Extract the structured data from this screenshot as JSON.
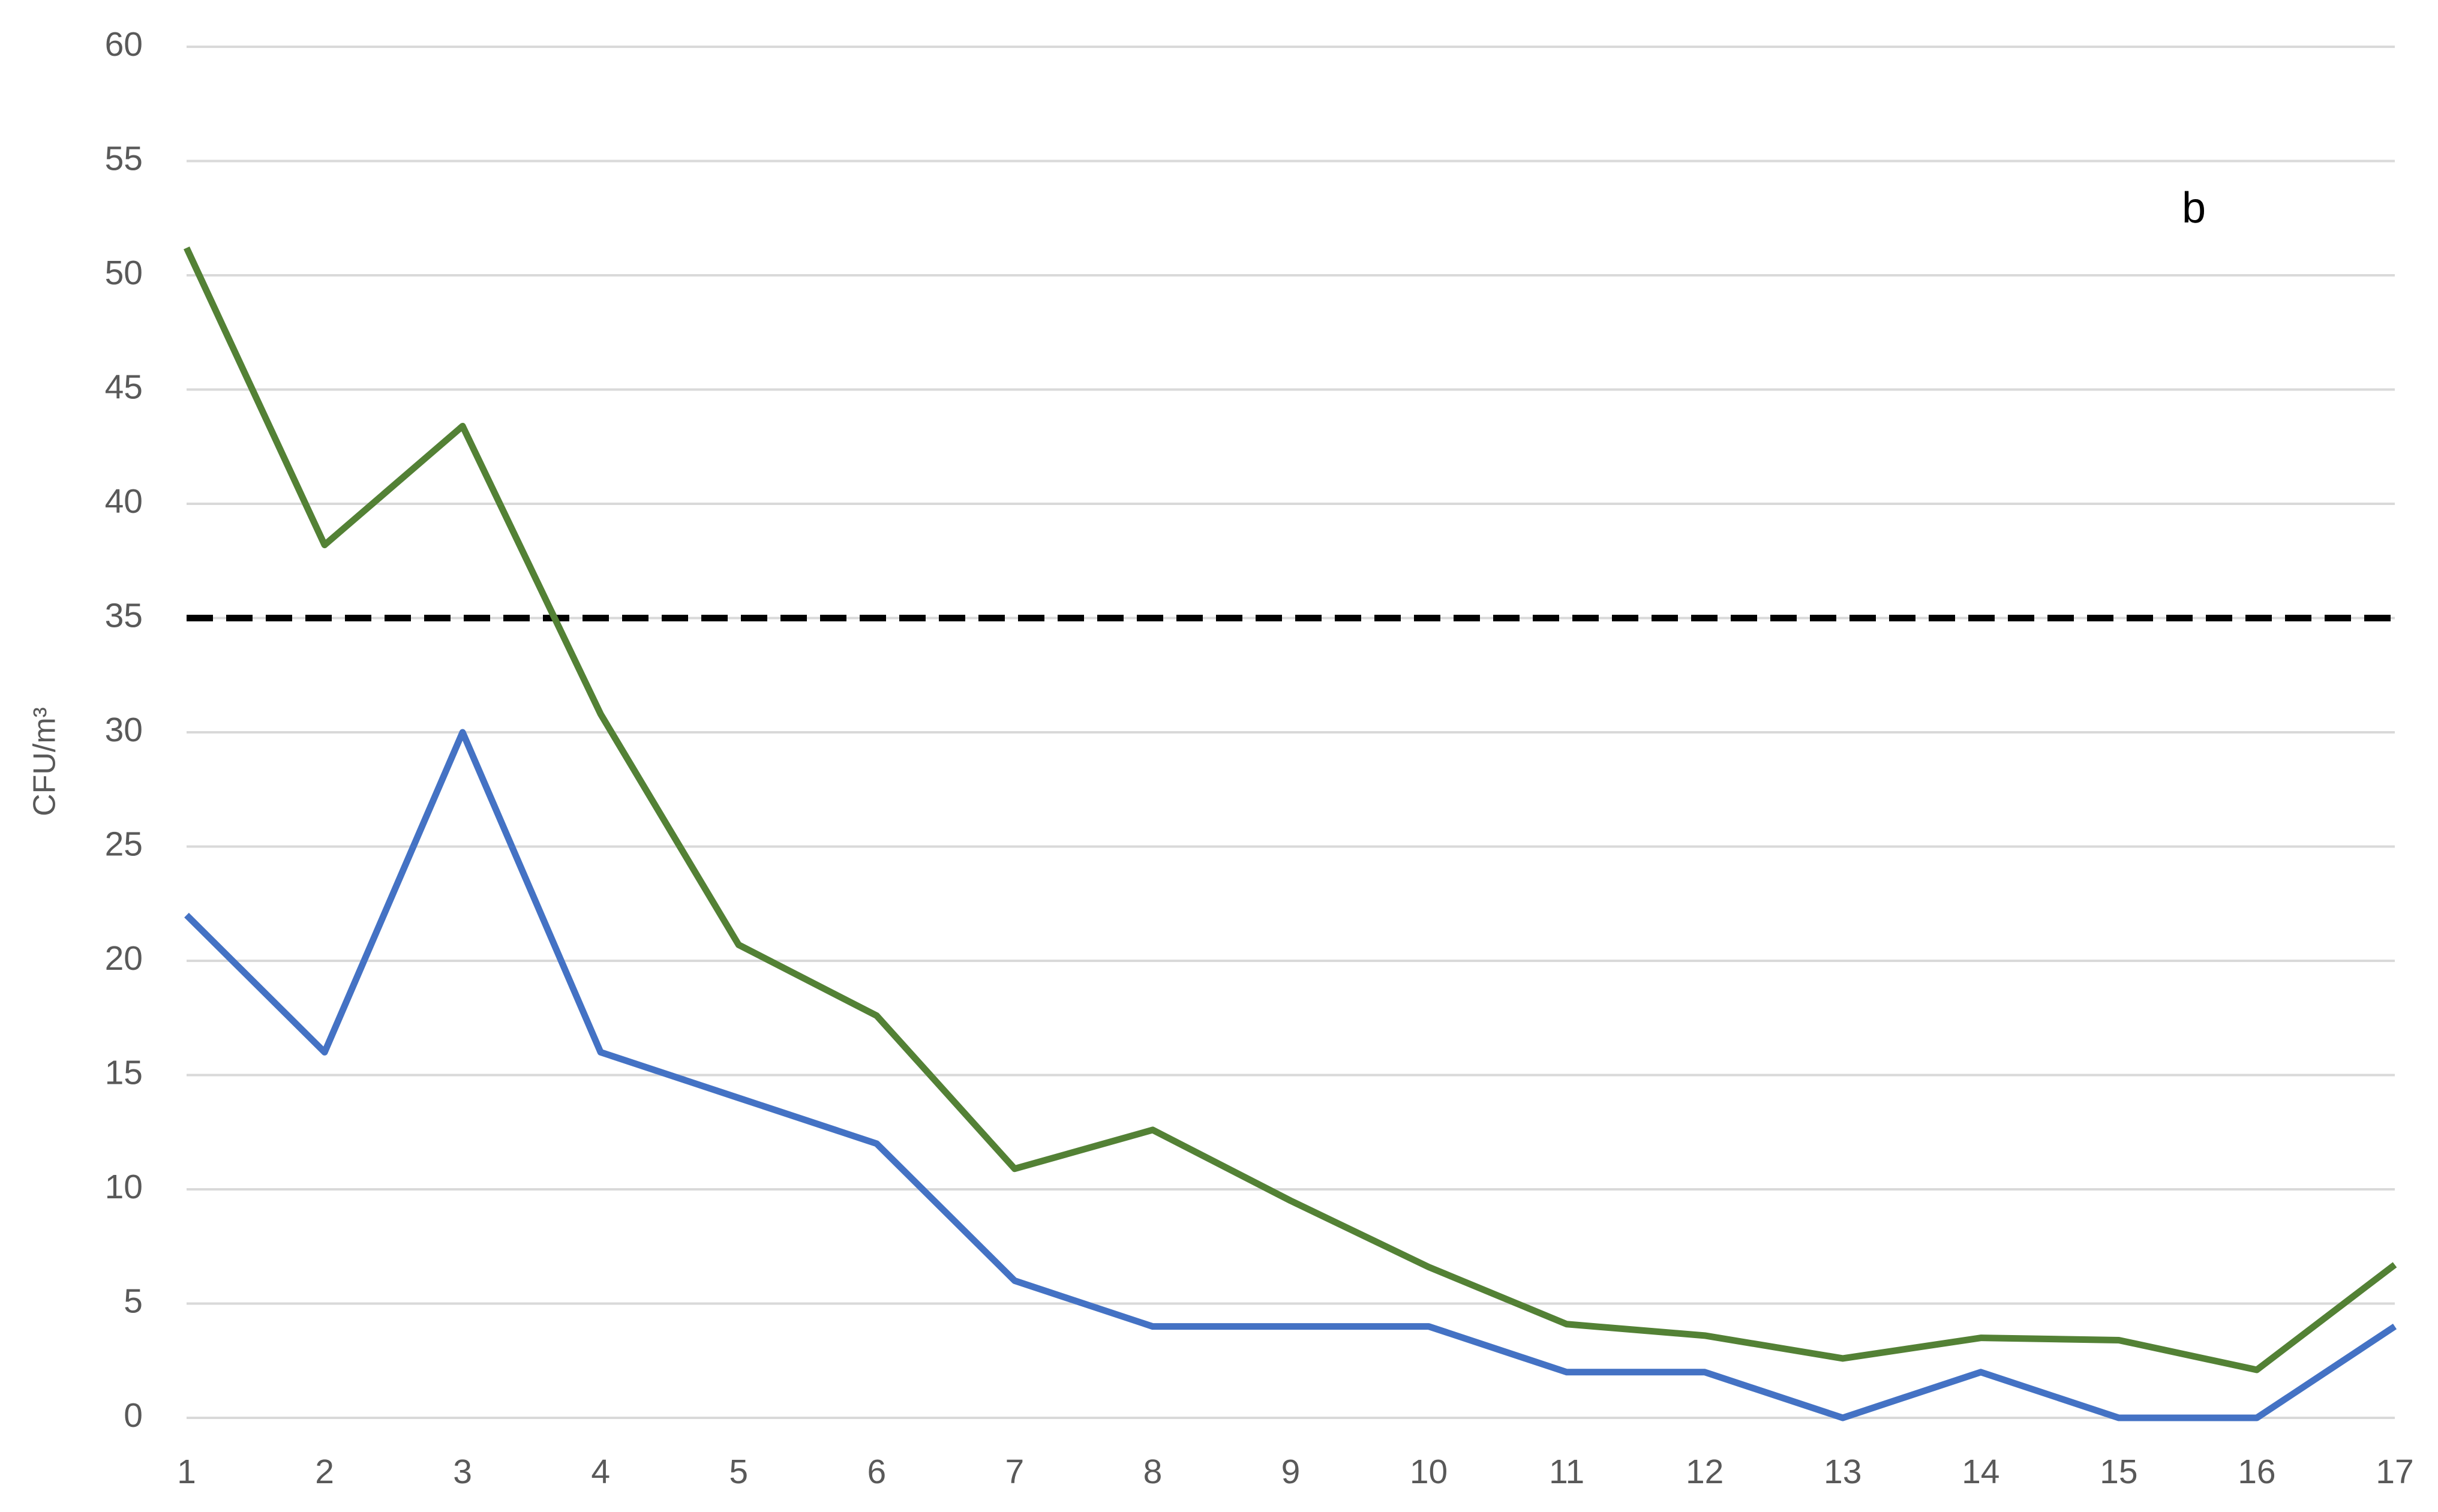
{
  "chart_data": {
    "type": "line",
    "y_label": "CFU/m³",
    "annotation": "b",
    "x": [
      1,
      2,
      3,
      4,
      5,
      6,
      7,
      8,
      9,
      10,
      11,
      12,
      13,
      14,
      15,
      16,
      17
    ],
    "series": [
      {
        "color": "#538135",
        "values": [
          51.2,
          38.2,
          43.4,
          30.8,
          20.7,
          17.6,
          10.9,
          12.6,
          9.5,
          6.6,
          4.1,
          3.6,
          2.6,
          3.5,
          3.4,
          2.1,
          6.7
        ]
      },
      {
        "color": "#4472c4",
        "values": [
          22,
          16,
          30,
          16,
          14,
          12,
          6,
          4,
          4,
          4,
          2,
          2,
          0,
          2,
          0,
          0,
          4
        ]
      }
    ],
    "reference_line": {
      "value": 35,
      "color": "#000000",
      "dashed": true
    },
    "xlim": [
      1,
      17
    ],
    "xticks": [
      1,
      2,
      3,
      4,
      5,
      6,
      7,
      8,
      9,
      10,
      11,
      12,
      13,
      14,
      15,
      16,
      17
    ],
    "ylim": [
      0,
      60
    ],
    "yticks": [
      0,
      5,
      10,
      15,
      20,
      25,
      30,
      35,
      40,
      45,
      50,
      55,
      60
    ],
    "grid": true
  }
}
